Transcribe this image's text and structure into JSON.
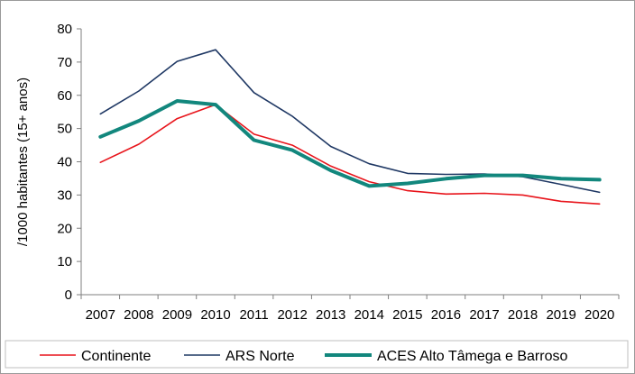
{
  "chart_data": {
    "type": "line",
    "title": "",
    "xlabel": "",
    "ylabel": "/1000 habitantes (15+ anos)",
    "ylim": [
      0,
      80
    ],
    "yticks": [
      0,
      10,
      20,
      30,
      40,
      50,
      60,
      70,
      80
    ],
    "grid": false,
    "legend_position": "bottom",
    "categories": [
      "2007",
      "2008",
      "2009",
      "2010",
      "2011",
      "2012",
      "2013",
      "2014",
      "2015",
      "2016",
      "2017",
      "2018",
      "2019",
      "2020"
    ],
    "series": [
      {
        "name": "Continente",
        "color": "#e8141b",
        "values": [
          39.8,
          45.3,
          53.0,
          57.2,
          48.3,
          45.0,
          38.7,
          34.0,
          31.3,
          30.3,
          30.5,
          30.0,
          28.1,
          27.3
        ]
      },
      {
        "name": "ARS Norte",
        "color": "#1f3864",
        "values": [
          54.4,
          61.3,
          70.2,
          73.7,
          60.8,
          53.7,
          44.6,
          39.4,
          36.5,
          36.2,
          36.3,
          35.5,
          33.2,
          30.8
        ]
      },
      {
        "name": "ACES Alto Tâmega e Barroso",
        "color": "#12877d",
        "values": [
          47.5,
          52.3,
          58.3,
          57.2,
          46.5,
          43.5,
          37.4,
          32.7,
          33.5,
          34.9,
          35.9,
          35.9,
          34.9,
          34.6
        ]
      }
    ]
  }
}
